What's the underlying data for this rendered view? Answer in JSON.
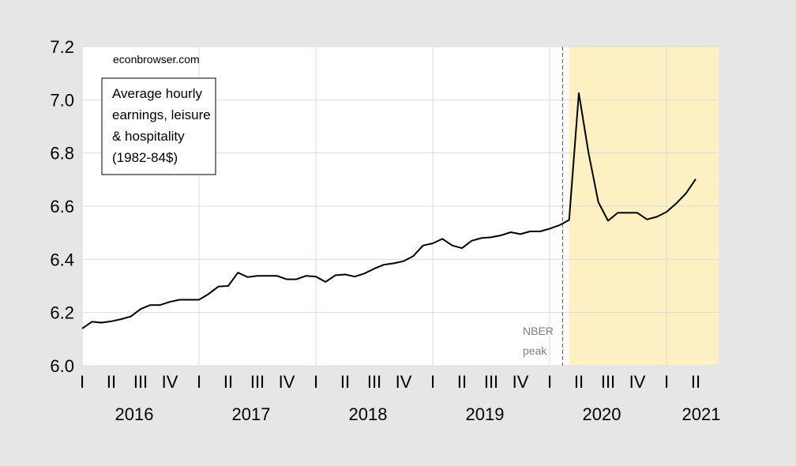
{
  "chart_data": {
    "type": "line",
    "source_label": "econbrowser.com",
    "legend_lines": [
      "Average hourly",
      "earnings, leisure",
      "& hospitality",
      "(1982-84$)"
    ],
    "annotation_lines": [
      "NBER",
      "peak"
    ],
    "ylim": [
      6.0,
      7.2
    ],
    "yticks": [
      "6.0",
      "6.2",
      "6.4",
      "6.6",
      "6.8",
      "7.0",
      "7.2"
    ],
    "quarter_labels": [
      "I",
      "II",
      "III",
      "IV",
      "I",
      "II",
      "III",
      "IV",
      "I",
      "II",
      "III",
      "IV",
      "I",
      "II",
      "III",
      "IV",
      "I",
      "II",
      "III",
      "IV",
      "I",
      "II"
    ],
    "year_labels": [
      "2016",
      "2017",
      "2018",
      "2019",
      "2020",
      "2021"
    ],
    "grid": true,
    "nber_peak": "2020-02",
    "recession_shading": {
      "start": "2020-03",
      "end": "2021-06",
      "color": "#fdf0c2"
    },
    "series": [
      {
        "color": "#000000",
        "x": [
          "2016-01",
          "2016-02",
          "2016-03",
          "2016-04",
          "2016-05",
          "2016-06",
          "2016-07",
          "2016-08",
          "2016-09",
          "2016-10",
          "2016-11",
          "2016-12",
          "2017-01",
          "2017-02",
          "2017-03",
          "2017-04",
          "2017-05",
          "2017-06",
          "2017-07",
          "2017-08",
          "2017-09",
          "2017-10",
          "2017-11",
          "2017-12",
          "2018-01",
          "2018-02",
          "2018-03",
          "2018-04",
          "2018-05",
          "2018-06",
          "2018-07",
          "2018-08",
          "2018-09",
          "2018-10",
          "2018-11",
          "2018-12",
          "2019-01",
          "2019-02",
          "2019-03",
          "2019-04",
          "2019-05",
          "2019-06",
          "2019-07",
          "2019-08",
          "2019-09",
          "2019-10",
          "2019-11",
          "2019-12",
          "2020-01",
          "2020-02",
          "2020-03",
          "2020-04",
          "2020-05",
          "2020-06",
          "2020-07",
          "2020-08",
          "2020-09",
          "2020-10",
          "2020-11",
          "2020-12",
          "2021-01",
          "2021-02",
          "2021-03",
          "2021-04",
          "2021-05"
        ],
        "values": [
          6.14,
          6.165,
          6.162,
          6.167,
          6.175,
          6.185,
          6.213,
          6.228,
          6.228,
          6.24,
          6.248,
          6.248,
          6.248,
          6.27,
          6.298,
          6.3,
          6.35,
          6.333,
          6.338,
          6.338,
          6.338,
          6.325,
          6.325,
          6.338,
          6.335,
          6.315,
          6.34,
          6.343,
          6.335,
          6.347,
          6.365,
          6.38,
          6.385,
          6.393,
          6.412,
          6.452,
          6.46,
          6.477,
          6.452,
          6.442,
          6.47,
          6.48,
          6.483,
          6.49,
          6.502,
          6.495,
          6.505,
          6.505,
          6.515,
          6.528,
          6.548,
          7.025,
          6.8,
          6.615,
          6.545,
          6.575,
          6.575,
          6.575,
          6.55,
          6.56,
          6.578,
          6.61,
          6.648,
          6.702,
          null
        ]
      }
    ]
  }
}
